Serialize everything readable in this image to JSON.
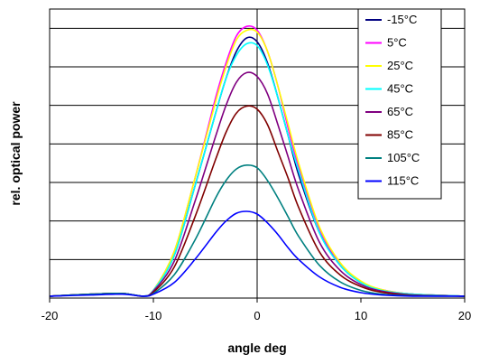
{
  "chart_data": {
    "type": "line",
    "title": "",
    "xlabel": "angle deg",
    "ylabel": "rel. optical power",
    "xlim": [
      -20,
      20
    ],
    "ylim": [
      0,
      7.5
    ],
    "xticks": [
      -20,
      -10,
      0,
      10,
      20
    ],
    "y_gridlines": [
      0,
      1,
      2,
      3,
      4,
      5,
      6,
      7
    ],
    "y_tick_labels_shown": false,
    "grid": true,
    "legend_position": "top-right",
    "baseline": 0.05,
    "series": [
      {
        "name": "-15°C",
        "color": "#000080",
        "x": [
          -20,
          -16,
          -13,
          -11,
          -10,
          -8,
          -6,
          -4,
          -3,
          -2,
          -1,
          0,
          1,
          2,
          3,
          4,
          6,
          8,
          10,
          12,
          15,
          20
        ],
        "y": [
          0.05,
          0.1,
          0.12,
          0.05,
          0.2,
          1.1,
          2.9,
          4.8,
          5.7,
          6.4,
          6.75,
          6.65,
          6.1,
          5.2,
          4.2,
          3.2,
          1.7,
          0.85,
          0.4,
          0.2,
          0.1,
          0.05
        ]
      },
      {
        "name": "5°C",
        "color": "#ff00ff",
        "x": [
          -20,
          -16,
          -13,
          -11,
          -10,
          -8,
          -6,
          -4,
          -3,
          -2,
          -1,
          0,
          1,
          2,
          3,
          4,
          6,
          8,
          10,
          12,
          15,
          20
        ],
        "y": [
          0.05,
          0.1,
          0.12,
          0.05,
          0.2,
          1.2,
          3.1,
          5.2,
          6.1,
          6.8,
          7.05,
          6.95,
          6.4,
          5.5,
          4.4,
          3.4,
          1.8,
          0.9,
          0.42,
          0.22,
          0.1,
          0.05
        ]
      },
      {
        "name": "25°C",
        "color": "#ffff00",
        "x": [
          -20,
          -16,
          -13,
          -11,
          -10,
          -8,
          -6,
          -4,
          -3,
          -2,
          -1,
          0,
          1,
          2,
          3,
          4,
          6,
          8,
          10,
          12,
          15,
          20
        ],
        "y": [
          0.05,
          0.1,
          0.12,
          0.05,
          0.2,
          1.2,
          3.1,
          5.1,
          6.0,
          6.7,
          6.95,
          6.9,
          6.4,
          5.5,
          4.5,
          3.5,
          1.85,
          0.92,
          0.44,
          0.22,
          0.1,
          0.05
        ]
      },
      {
        "name": "45°C",
        "color": "#00ffff",
        "x": [
          -20,
          -16,
          -13,
          -11,
          -10,
          -8,
          -6,
          -4,
          -3,
          -2,
          -1,
          0,
          1,
          2,
          3,
          4,
          6,
          8,
          10,
          12,
          15,
          20
        ],
        "y": [
          0.05,
          0.1,
          0.12,
          0.05,
          0.2,
          1.1,
          2.9,
          4.8,
          5.7,
          6.3,
          6.6,
          6.55,
          6.05,
          5.2,
          4.2,
          3.3,
          1.7,
          0.85,
          0.4,
          0.2,
          0.1,
          0.05
        ]
      },
      {
        "name": "65°C",
        "color": "#800080",
        "x": [
          -20,
          -16,
          -13,
          -11,
          -10,
          -8,
          -6,
          -4,
          -3,
          -2,
          -1,
          0,
          1,
          2,
          3,
          4,
          6,
          8,
          10,
          12,
          15,
          20
        ],
        "y": [
          0.05,
          0.1,
          0.12,
          0.05,
          0.18,
          0.95,
          2.5,
          4.2,
          5.0,
          5.6,
          5.85,
          5.75,
          5.3,
          4.5,
          3.65,
          2.8,
          1.45,
          0.72,
          0.35,
          0.18,
          0.08,
          0.05
        ]
      },
      {
        "name": "85°C",
        "color": "#800000",
        "x": [
          -20,
          -16,
          -13,
          -11,
          -10,
          -8,
          -6,
          -4,
          -3,
          -2,
          -1,
          0,
          1,
          2,
          3,
          4,
          6,
          8,
          10,
          12,
          15,
          20
        ],
        "y": [
          0.05,
          0.1,
          0.12,
          0.05,
          0.15,
          0.8,
          2.1,
          3.6,
          4.3,
          4.8,
          4.98,
          4.9,
          4.5,
          3.8,
          3.1,
          2.35,
          1.2,
          0.6,
          0.3,
          0.15,
          0.07,
          0.05
        ]
      },
      {
        "name": "105°C",
        "color": "#008080",
        "x": [
          -20,
          -16,
          -13,
          -11,
          -10,
          -8,
          -6,
          -4,
          -3,
          -2,
          -1,
          0,
          1,
          2,
          3,
          4,
          6,
          8,
          10,
          12,
          15,
          20
        ],
        "y": [
          0.05,
          0.1,
          0.12,
          0.05,
          0.12,
          0.6,
          1.5,
          2.6,
          3.05,
          3.35,
          3.45,
          3.38,
          3.05,
          2.6,
          2.1,
          1.6,
          0.85,
          0.42,
          0.2,
          0.1,
          0.06,
          0.05
        ]
      },
      {
        "name": "115°C",
        "color": "#0000ff",
        "x": [
          -20,
          -16,
          -13,
          -11,
          -10,
          -8,
          -6,
          -4,
          -3,
          -2,
          -1,
          0,
          1,
          2,
          3,
          4,
          6,
          8,
          10,
          12,
          15,
          20
        ],
        "y": [
          0.05,
          0.08,
          0.1,
          0.05,
          0.1,
          0.4,
          1.0,
          1.7,
          2.0,
          2.2,
          2.25,
          2.18,
          1.95,
          1.65,
          1.3,
          1.0,
          0.55,
          0.28,
          0.14,
          0.08,
          0.05,
          0.05
        ]
      }
    ]
  }
}
